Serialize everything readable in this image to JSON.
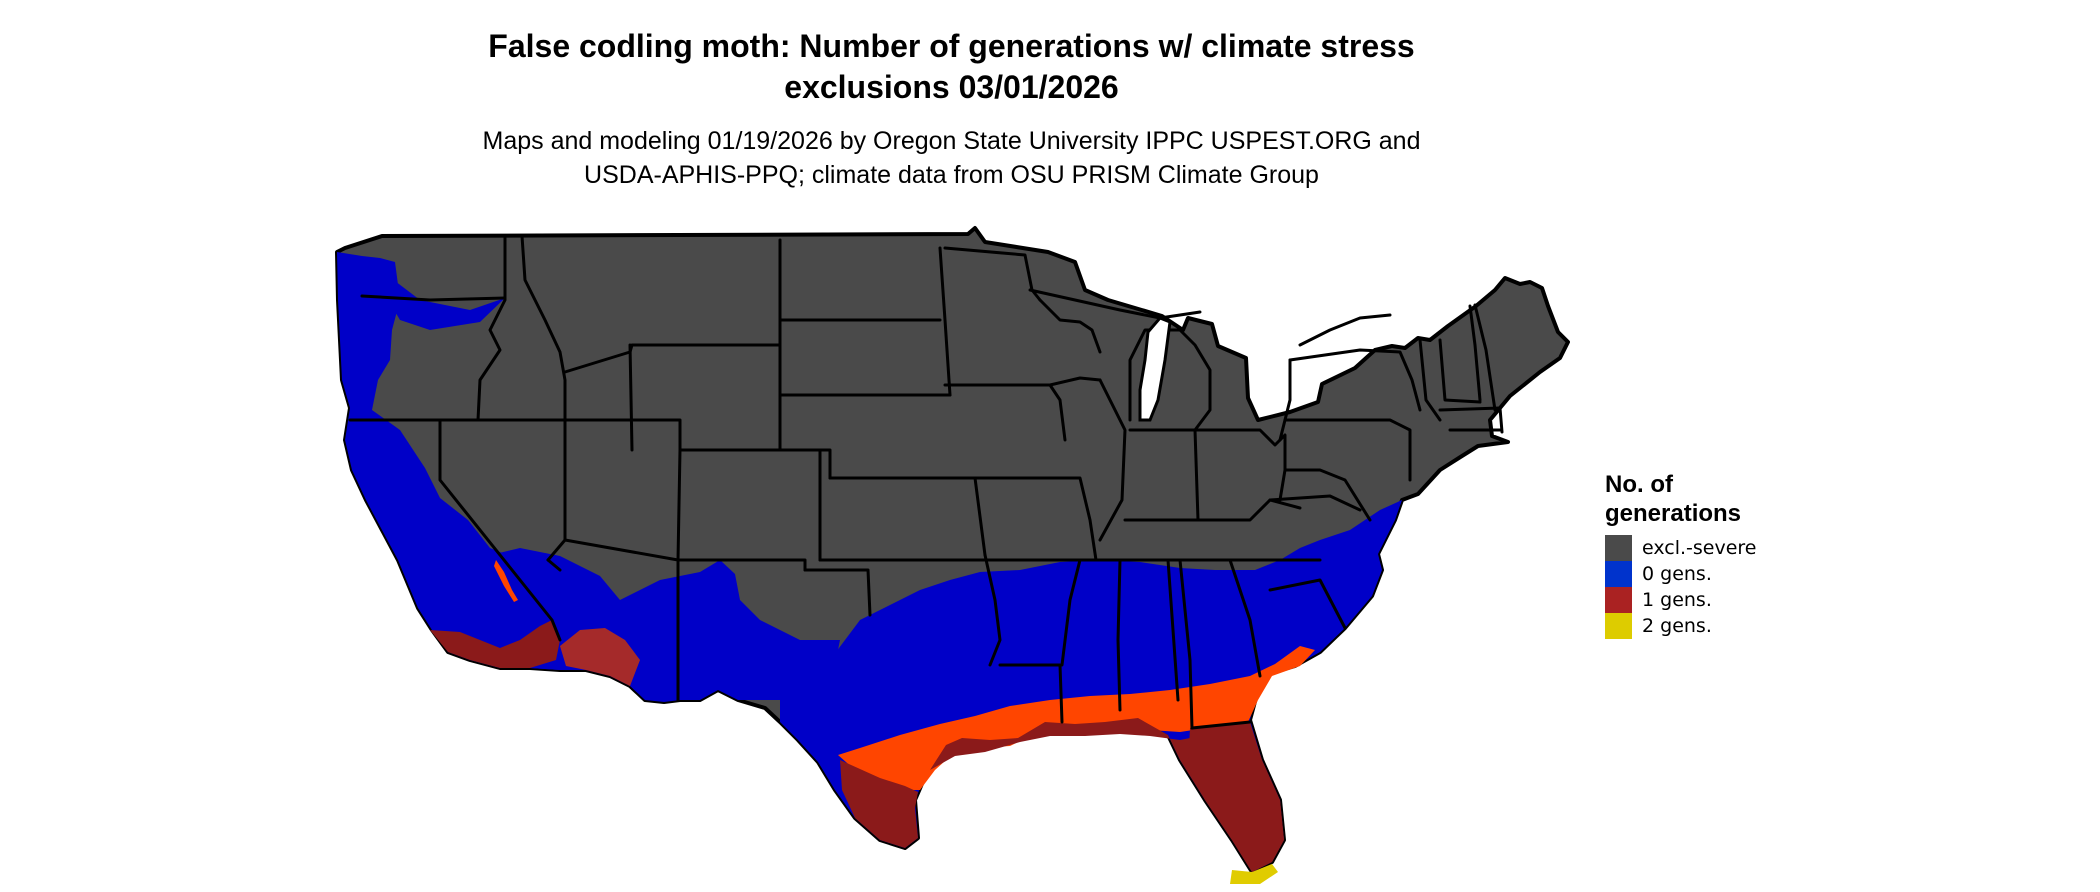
{
  "title": {
    "line1": "False codling moth: Number of generations w/ climate stress",
    "line2": "exclusions 03/01/2026"
  },
  "subtitle": {
    "line1": "Maps and modeling 01/19/2026 by Oregon State University IPPC USPEST.ORG and",
    "line2": "USDA-APHIS-PPQ; climate data from OSU PRISM Climate Group"
  },
  "legend": {
    "title_line1": "No. of",
    "title_line2": "generations",
    "items": [
      {
        "label": "excl.-severe",
        "color": "#4a4a4a"
      },
      {
        "label": "0 gens.",
        "color": "#0033cc"
      },
      {
        "label": "1 gens.",
        "color": "#aa2222"
      },
      {
        "label": "2 gens.",
        "color": "#ddcc00"
      }
    ]
  },
  "map_colors": {
    "excluded": "#4a4a4a",
    "zero": "#0000c8",
    "one_dark": "#8b1a1a",
    "one_light": "#ff4500",
    "two": "#e0cc00",
    "borders": "#000000"
  }
}
